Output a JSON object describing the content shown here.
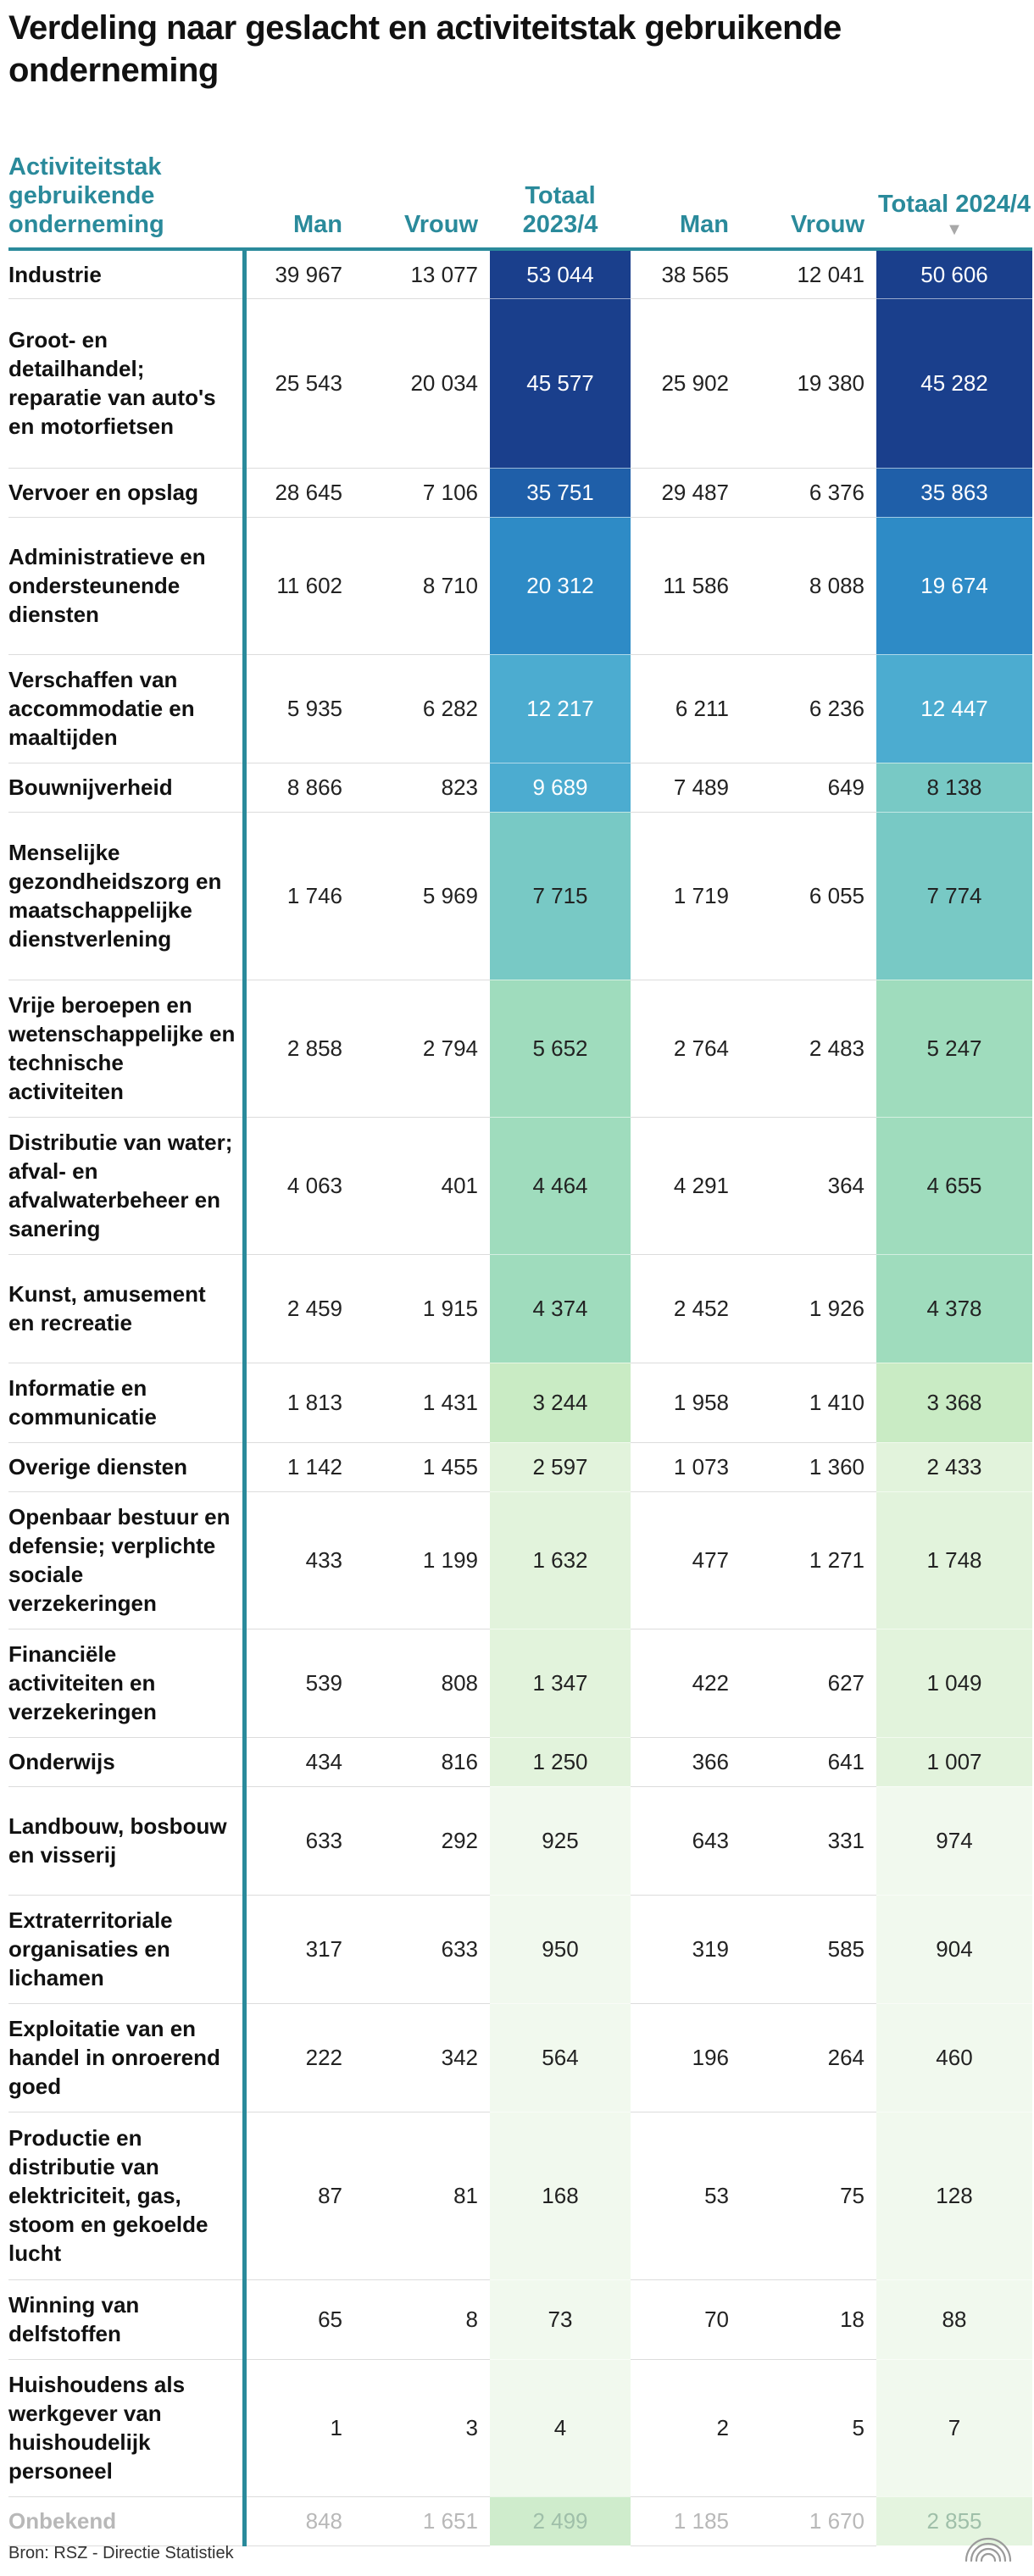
{
  "title": "Verdeling naar geslacht en activiteitstak gebruikende onderneming",
  "source": "Bron: RSZ - Directie Statistiek",
  "logo_icon": "rsz-arc-logo-icon",
  "colors": {
    "accent": "#2a8a9b",
    "scale": [
      "#f1f9ee",
      "#e2f3dc",
      "#c9ebc4",
      "#9fdcbd",
      "#78c9c5",
      "#4cacd0",
      "#2e8bc6",
      "#1f5fa9",
      "#1a3f8c"
    ]
  },
  "header": {
    "label": "Activiteitstak gebruikende onderneming",
    "man": "Man",
    "vrouw": "Vrouw",
    "totaal_2023": "Totaal 2023/4",
    "totaal_2024": "Totaal 2024/4",
    "sort_indicator": "▼"
  },
  "chart_data": {
    "type": "table",
    "title": "Verdeling naar geslacht en activiteitstak gebruikende onderneming",
    "columns": [
      "Activiteitstak gebruikende onderneming",
      "Man",
      "Vrouw",
      "Totaal 2023/4",
      "Man",
      "Vrouw",
      "Totaal 2024/4"
    ],
    "sorted_by": "Totaal 2024/4",
    "rows": [
      {
        "label": "Industrie",
        "man_2023": "39 967",
        "vrouw_2023": "13 077",
        "totaal_2023": "53 044",
        "man_2024": "38 565",
        "vrouw_2024": "12 041",
        "totaal_2024": "50 606"
      },
      {
        "label": "Groot- en detailhandel; reparatie van auto's en motorfietsen",
        "man_2023": "25 543",
        "vrouw_2023": "20 034",
        "totaal_2023": "45 577",
        "man_2024": "25 902",
        "vrouw_2024": "19 380",
        "totaal_2024": "45 282"
      },
      {
        "label": "Vervoer en opslag",
        "man_2023": "28 645",
        "vrouw_2023": "7 106",
        "totaal_2023": "35 751",
        "man_2024": "29 487",
        "vrouw_2024": "6 376",
        "totaal_2024": "35 863"
      },
      {
        "label": "Administratieve en ondersteunende diensten",
        "man_2023": "11 602",
        "vrouw_2023": "8 710",
        "totaal_2023": "20 312",
        "man_2024": "11 586",
        "vrouw_2024": "8 088",
        "totaal_2024": "19 674"
      },
      {
        "label": "Verschaffen van accommodatie en maaltijden",
        "man_2023": "5 935",
        "vrouw_2023": "6 282",
        "totaal_2023": "12 217",
        "man_2024": "6 211",
        "vrouw_2024": "6 236",
        "totaal_2024": "12 447"
      },
      {
        "label": "Bouwnijverheid",
        "man_2023": "8 866",
        "vrouw_2023": "823",
        "totaal_2023": "9 689",
        "man_2024": "7 489",
        "vrouw_2024": "649",
        "totaal_2024": "8 138"
      },
      {
        "label": "Menselijke gezondheidszorg en maatschappelijke dienstverlening",
        "man_2023": "1 746",
        "vrouw_2023": "5 969",
        "totaal_2023": "7 715",
        "man_2024": "1 719",
        "vrouw_2024": "6 055",
        "totaal_2024": "7 774"
      },
      {
        "label": "Vrije beroepen en wetenschappelijke en technische activiteiten",
        "man_2023": "2 858",
        "vrouw_2023": "2 794",
        "totaal_2023": "5 652",
        "man_2024": "2 764",
        "vrouw_2024": "2 483",
        "totaal_2024": "5 247"
      },
      {
        "label": "Distributie van water; afval- en afvalwaterbeheer en sanering",
        "man_2023": "4 063",
        "vrouw_2023": "401",
        "totaal_2023": "4 464",
        "man_2024": "4 291",
        "vrouw_2024": "364",
        "totaal_2024": "4 655"
      },
      {
        "label": "Kunst, amusement en recreatie",
        "man_2023": "2 459",
        "vrouw_2023": "1 915",
        "totaal_2023": "4 374",
        "man_2024": "2 452",
        "vrouw_2024": "1 926",
        "totaal_2024": "4 378"
      },
      {
        "label": "Informatie en communicatie",
        "man_2023": "1 813",
        "vrouw_2023": "1 431",
        "totaal_2023": "3 244",
        "man_2024": "1 958",
        "vrouw_2024": "1 410",
        "totaal_2024": "3 368"
      },
      {
        "label": "Overige diensten",
        "man_2023": "1 142",
        "vrouw_2023": "1 455",
        "totaal_2023": "2 597",
        "man_2024": "1 073",
        "vrouw_2024": "1 360",
        "totaal_2024": "2 433"
      },
      {
        "label": "Openbaar bestuur en defensie; verplichte sociale verzekeringen",
        "man_2023": "433",
        "vrouw_2023": "1 199",
        "totaal_2023": "1 632",
        "man_2024": "477",
        "vrouw_2024": "1 271",
        "totaal_2024": "1 748"
      },
      {
        "label": "Financiële activiteiten en verzekeringen",
        "man_2023": "539",
        "vrouw_2023": "808",
        "totaal_2023": "1 347",
        "man_2024": "422",
        "vrouw_2024": "627",
        "totaal_2024": "1 049"
      },
      {
        "label": "Onderwijs",
        "man_2023": "434",
        "vrouw_2023": "816",
        "totaal_2023": "1 250",
        "man_2024": "366",
        "vrouw_2024": "641",
        "totaal_2024": "1 007"
      },
      {
        "label": "Landbouw, bosbouw en visserij",
        "man_2023": "633",
        "vrouw_2023": "292",
        "totaal_2023": "925",
        "man_2024": "643",
        "vrouw_2024": "331",
        "totaal_2024": "974"
      },
      {
        "label": "Extraterritoriale organisaties en lichamen",
        "man_2023": "317",
        "vrouw_2023": "633",
        "totaal_2023": "950",
        "man_2024": "319",
        "vrouw_2024": "585",
        "totaal_2024": "904"
      },
      {
        "label": "Exploitatie van en handel in onroerend goed",
        "man_2023": "222",
        "vrouw_2023": "342",
        "totaal_2023": "564",
        "man_2024": "196",
        "vrouw_2024": "264",
        "totaal_2024": "460"
      },
      {
        "label": "Productie en distributie van elektriciteit, gas, stoom en gekoelde lucht",
        "man_2023": "87",
        "vrouw_2023": "81",
        "totaal_2023": "168",
        "man_2024": "53",
        "vrouw_2024": "75",
        "totaal_2024": "128"
      },
      {
        "label": "Winning van delfstoffen",
        "man_2023": "65",
        "vrouw_2023": "8",
        "totaal_2023": "73",
        "man_2024": "70",
        "vrouw_2024": "18",
        "totaal_2024": "88"
      },
      {
        "label": "Huishoudens als werkgever van huishoudelijk personeel",
        "man_2023": "1",
        "vrouw_2023": "3",
        "totaal_2023": "4",
        "man_2024": "2",
        "vrouw_2024": "5",
        "totaal_2024": "7"
      },
      {
        "label": "Onbekend",
        "man_2023": "848",
        "vrouw_2023": "1 651",
        "totaal_2023": "2 499",
        "man_2024": "1 185",
        "vrouw_2024": "1 670",
        "totaal_2024": "2 855",
        "muted": true
      }
    ]
  }
}
